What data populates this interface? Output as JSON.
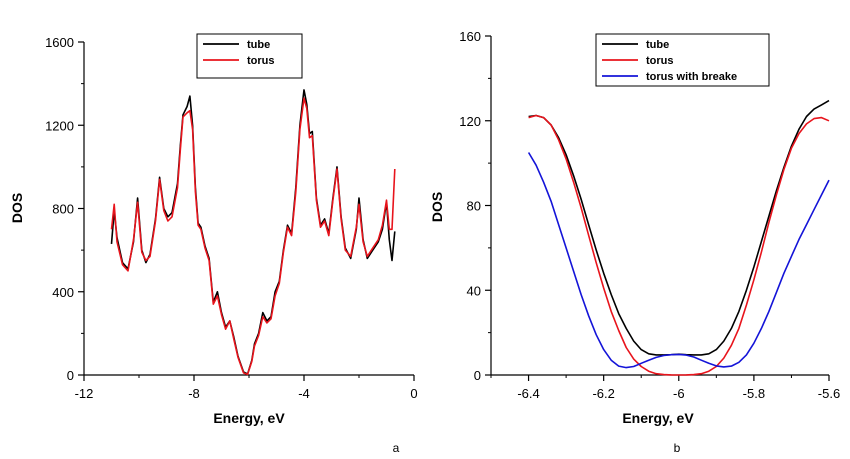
{
  "colors": {
    "tube": "#000000",
    "torus": "#e8141c",
    "torus_with_breake": "#1414d8"
  },
  "chart_data": [
    {
      "type": "line",
      "panel_label": "a",
      "xlabel": "Energy, eV",
      "ylabel": "DOS",
      "xlim": [
        -12,
        0
      ],
      "ylim": [
        0,
        1600
      ],
      "xticks": [
        -12,
        -8,
        -4,
        0
      ],
      "xtick_labels": [
        "-12",
        "-8",
        "-4",
        "0"
      ],
      "yticks": [
        0,
        400,
        800,
        1200,
        1600
      ],
      "ytick_labels": [
        "0",
        "400",
        "800",
        "1200",
        "1600"
      ],
      "legend_position": "top-center",
      "series": [
        {
          "name": "tube",
          "color": "#000000",
          "x": [
            -11,
            -10.9,
            -10.8,
            -10.6,
            -10.4,
            -10.2,
            -10.05,
            -9.9,
            -9.75,
            -9.6,
            -9.4,
            -9.25,
            -9.1,
            -8.95,
            -8.8,
            -8.6,
            -8.5,
            -8.4,
            -8.25,
            -8.15,
            -8.05,
            -7.95,
            -7.85,
            -7.75,
            -7.6,
            -7.45,
            -7.3,
            -7.15,
            -7.0,
            -6.85,
            -6.7,
            -6.55,
            -6.4,
            -6.2,
            -6.05,
            -5.9,
            -5.8,
            -5.65,
            -5.5,
            -5.35,
            -5.2,
            -5.05,
            -4.9,
            -4.75,
            -4.6,
            -4.45,
            -4.3,
            -4.15,
            -4.0,
            -3.9,
            -3.8,
            -3.7,
            -3.55,
            -3.4,
            -3.25,
            -3.1,
            -2.95,
            -2.8,
            -2.65,
            -2.5,
            -2.3,
            -2.1,
            -2.0,
            -1.85,
            -1.7,
            -1.5,
            -1.3,
            -1.15,
            -1.0,
            -0.9,
            -0.8,
            -0.7
          ],
          "y": [
            630,
            790,
            660,
            540,
            510,
            640,
            850,
            600,
            540,
            580,
            750,
            950,
            800,
            760,
            780,
            920,
            1100,
            1250,
            1290,
            1340,
            1200,
            900,
            730,
            710,
            620,
            560,
            350,
            400,
            300,
            230,
            260,
            180,
            90,
            15,
            5,
            70,
            150,
            200,
            300,
            260,
            280,
            400,
            450,
            600,
            720,
            680,
            900,
            1200,
            1370,
            1300,
            1160,
            1170,
            850,
            720,
            750,
            680,
            850,
            1000,
            760,
            610,
            560,
            700,
            850,
            650,
            560,
            600,
            640,
            700,
            830,
            650,
            550,
            690
          ]
        },
        {
          "name": "torus",
          "color": "#e8141c",
          "x": [
            -11,
            -10.9,
            -10.8,
            -10.6,
            -10.4,
            -10.2,
            -10.05,
            -9.9,
            -9.75,
            -9.6,
            -9.4,
            -9.25,
            -9.1,
            -8.95,
            -8.8,
            -8.6,
            -8.5,
            -8.4,
            -8.25,
            -8.15,
            -8.05,
            -7.95,
            -7.85,
            -7.75,
            -7.6,
            -7.45,
            -7.3,
            -7.15,
            -7.0,
            -6.85,
            -6.7,
            -6.55,
            -6.4,
            -6.2,
            -6.05,
            -5.9,
            -5.8,
            -5.65,
            -5.5,
            -5.35,
            -5.2,
            -5.05,
            -4.9,
            -4.75,
            -4.6,
            -4.45,
            -4.3,
            -4.15,
            -4.0,
            -3.9,
            -3.8,
            -3.7,
            -3.55,
            -3.4,
            -3.25,
            -3.1,
            -2.95,
            -2.8,
            -2.65,
            -2.5,
            -2.3,
            -2.1,
            -2.0,
            -1.85,
            -1.7,
            -1.5,
            -1.3,
            -1.15,
            -1.0,
            -0.9,
            -0.8,
            -0.7
          ],
          "y": [
            700,
            820,
            640,
            530,
            500,
            650,
            830,
            590,
            550,
            570,
            740,
            940,
            790,
            740,
            760,
            900,
            1080,
            1240,
            1260,
            1270,
            1180,
            880,
            720,
            700,
            610,
            550,
            340,
            380,
            290,
            220,
            260,
            170,
            85,
            10,
            3,
            65,
            140,
            190,
            280,
            250,
            270,
            380,
            440,
            590,
            710,
            670,
            880,
            1180,
            1330,
            1280,
            1140,
            1150,
            840,
            710,
            740,
            670,
            840,
            990,
            750,
            600,
            570,
            710,
            820,
            640,
            570,
            610,
            650,
            720,
            840,
            700,
            700,
            990
          ]
        }
      ]
    },
    {
      "type": "line",
      "panel_label": "b",
      "xlabel": "Energy, eV",
      "ylabel": "DOS",
      "xlim": [
        -6.5,
        -5.6
      ],
      "ylim": [
        0,
        160
      ],
      "xticks": [
        -6.4,
        -6.2,
        -6.0,
        -5.8,
        -5.6
      ],
      "xtick_labels": [
        "-6.4",
        "-6.2",
        "-6",
        "-5.8",
        "-5.6"
      ],
      "yticks": [
        0,
        40,
        80,
        120,
        160
      ],
      "ytick_labels": [
        "0",
        "40",
        "80",
        "120",
        "160"
      ],
      "legend_position": "top-right",
      "series": [
        {
          "name": "tube",
          "color": "#000000",
          "x": [
            -6.4,
            -6.38,
            -6.36,
            -6.34,
            -6.32,
            -6.3,
            -6.28,
            -6.26,
            -6.24,
            -6.22,
            -6.2,
            -6.18,
            -6.16,
            -6.14,
            -6.12,
            -6.1,
            -6.08,
            -6.06,
            -6.04,
            -6.02,
            -6.0,
            -5.98,
            -5.96,
            -5.94,
            -5.92,
            -5.9,
            -5.88,
            -5.86,
            -5.84,
            -5.82,
            -5.8,
            -5.78,
            -5.76,
            -5.74,
            -5.72,
            -5.7,
            -5.68,
            -5.66,
            -5.64,
            -5.62,
            -5.6
          ],
          "y": [
            122,
            122.5,
            121.5,
            118,
            112,
            104,
            94,
            83,
            71,
            59,
            48,
            38,
            29,
            22,
            16,
            12,
            10,
            9.5,
            9.5,
            9.6,
            9.8,
            9.6,
            9.5,
            9.5,
            10,
            12,
            16,
            22,
            30,
            40,
            51,
            63,
            75,
            87,
            98,
            108,
            116,
            122,
            125.5,
            127.5,
            129.5
          ]
        },
        {
          "name": "torus",
          "color": "#e8141c",
          "x": [
            -6.4,
            -6.38,
            -6.36,
            -6.34,
            -6.32,
            -6.3,
            -6.28,
            -6.26,
            -6.24,
            -6.22,
            -6.2,
            -6.18,
            -6.16,
            -6.14,
            -6.12,
            -6.1,
            -6.08,
            -6.06,
            -6.04,
            -6.02,
            -6.0,
            -5.98,
            -5.96,
            -5.94,
            -5.92,
            -5.9,
            -5.88,
            -5.86,
            -5.84,
            -5.82,
            -5.8,
            -5.78,
            -5.76,
            -5.74,
            -5.72,
            -5.7,
            -5.68,
            -5.66,
            -5.64,
            -5.62,
            -5.6
          ],
          "y": [
            121.5,
            122.5,
            121.5,
            118,
            111,
            102,
            91,
            79,
            66,
            53,
            41,
            30,
            21,
            13,
            7.5,
            4,
            1.8,
            0.6,
            0.2,
            0.05,
            0,
            0.05,
            0.2,
            0.6,
            1.8,
            4,
            8,
            14,
            22,
            33,
            45,
            58,
            72,
            85,
            97,
            107,
            114,
            118.5,
            121,
            121.5,
            120
          ]
        },
        {
          "name": "torus with breake",
          "color": "#1414d8",
          "x": [
            -6.4,
            -6.38,
            -6.36,
            -6.34,
            -6.32,
            -6.3,
            -6.28,
            -6.26,
            -6.24,
            -6.22,
            -6.2,
            -6.18,
            -6.16,
            -6.14,
            -6.12,
            -6.1,
            -6.08,
            -6.06,
            -6.04,
            -6.02,
            -6.0,
            -5.98,
            -5.96,
            -5.94,
            -5.92,
            -5.9,
            -5.88,
            -5.86,
            -5.84,
            -5.82,
            -5.8,
            -5.78,
            -5.76,
            -5.74,
            -5.72,
            -5.7,
            -5.68,
            -5.66,
            -5.64,
            -5.62,
            -5.6
          ],
          "y": [
            105,
            99,
            91,
            82,
            71,
            60,
            49,
            38,
            28,
            19,
            12,
            7,
            4.2,
            3.5,
            4,
            5.5,
            7,
            8.3,
            9.2,
            9.6,
            9.7,
            9.4,
            8.5,
            7,
            5.5,
            4.3,
            3.8,
            4.2,
            6,
            9.5,
            15,
            22,
            30,
            39,
            48,
            56,
            64,
            71,
            78,
            85,
            92
          ]
        }
      ]
    }
  ]
}
